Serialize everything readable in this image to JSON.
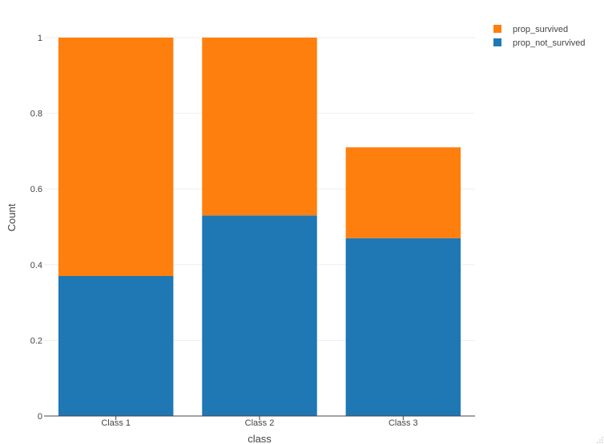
{
  "chart_data": {
    "type": "bar",
    "stacked": true,
    "categories": [
      "Class 1",
      "Class 2",
      "Class 3"
    ],
    "series": [
      {
        "name": "prop_not_survived",
        "values": [
          0.37,
          0.53,
          0.47
        ],
        "color": "#1f77b4"
      },
      {
        "name": "prop_survived",
        "values": [
          0.63,
          0.47,
          0.24
        ],
        "color": "#ff7f0e"
      }
    ],
    "xlabel": "class",
    "ylabel": "Count",
    "ylim": [
      0,
      1
    ],
    "yticks": [
      0,
      0.2,
      0.4,
      0.6,
      0.8,
      1
    ],
    "ytick_labels": [
      "0",
      "0.2",
      "0.4",
      "0.6",
      "0.8",
      "1"
    ],
    "grid": true,
    "legend": {
      "placement": "top-right",
      "entries": [
        {
          "name": "prop_survived",
          "color": "#ff7f0e"
        },
        {
          "name": "prop_not_survived",
          "color": "#1f77b4"
        }
      ]
    }
  },
  "ui": {
    "resize_handle_icon": "resize-grip-icon"
  }
}
